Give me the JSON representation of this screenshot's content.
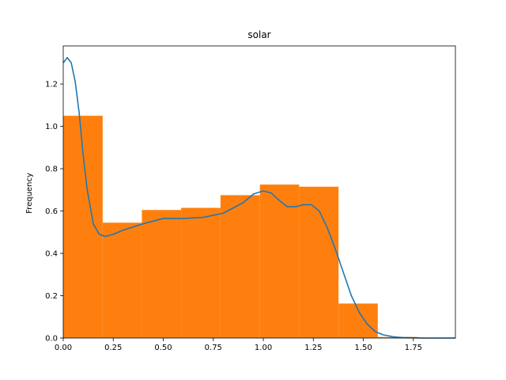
{
  "chart_data": {
    "type": "bar",
    "title": "solar",
    "xlabel": "",
    "ylabel": "Frequency",
    "xlim": [
      0.0,
      1.96
    ],
    "ylim": [
      0.0,
      1.38
    ],
    "xticks": [
      "0.00",
      "0.25",
      "0.50",
      "0.75",
      "1.00",
      "1.25",
      "1.50",
      "1.75"
    ],
    "yticks": [
      "0.0",
      "0.2",
      "0.4",
      "0.6",
      "0.8",
      "1.0",
      "1.2"
    ],
    "bin_edges": [
      0.0,
      0.197,
      0.393,
      0.589,
      0.786,
      0.983,
      1.179,
      1.376,
      1.572,
      1.769
    ],
    "values": [
      1.05,
      0.545,
      0.605,
      0.615,
      0.675,
      0.725,
      0.715,
      0.163,
      0.005
    ],
    "bar_color": "#ff7f0e",
    "kde": {
      "name": "",
      "color": "#1f77b4",
      "x": [
        0.0,
        0.02,
        0.04,
        0.06,
        0.08,
        0.1,
        0.12,
        0.15,
        0.18,
        0.21,
        0.25,
        0.3,
        0.4,
        0.5,
        0.6,
        0.7,
        0.8,
        0.9,
        0.95,
        1.0,
        1.04,
        1.08,
        1.12,
        1.16,
        1.2,
        1.24,
        1.28,
        1.32,
        1.36,
        1.4,
        1.44,
        1.48,
        1.52,
        1.56,
        1.6,
        1.65,
        1.7,
        1.75,
        1.8,
        1.9,
        1.96
      ],
      "y": [
        1.3,
        1.325,
        1.3,
        1.21,
        1.06,
        0.86,
        0.7,
        0.54,
        0.49,
        0.48,
        0.49,
        0.51,
        0.54,
        0.565,
        0.565,
        0.57,
        0.59,
        0.64,
        0.68,
        0.695,
        0.685,
        0.65,
        0.62,
        0.62,
        0.63,
        0.63,
        0.6,
        0.52,
        0.42,
        0.31,
        0.2,
        0.12,
        0.065,
        0.03,
        0.015,
        0.006,
        0.002,
        0.001,
        0.0,
        0.0,
        0.0
      ]
    }
  }
}
